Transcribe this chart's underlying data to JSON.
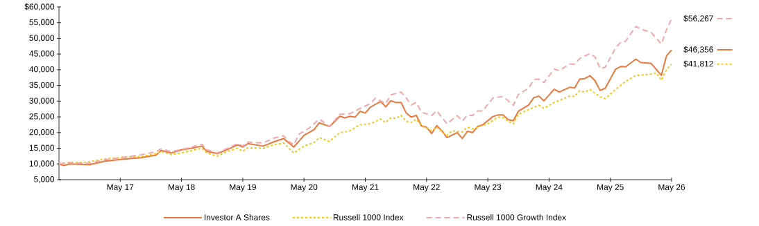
{
  "chart_data": {
    "type": "line",
    "xlim": [
      "2016-05",
      "2026-05"
    ],
    "xticks": [
      {
        "value": "2017-05",
        "label": "May 17"
      },
      {
        "value": "2018-05",
        "label": "May 18"
      },
      {
        "value": "2019-05",
        "label": "May 19"
      },
      {
        "value": "2020-05",
        "label": "May 20"
      },
      {
        "value": "2021-05",
        "label": "May 21"
      },
      {
        "value": "2022-05",
        "label": "May 22"
      },
      {
        "value": "2023-05",
        "label": "May 23"
      },
      {
        "value": "2024-05",
        "label": "May 24"
      },
      {
        "value": "2025-05",
        "label": "May 25"
      },
      {
        "value": "2026-05",
        "label": "May 26"
      }
    ],
    "ylim": [
      5000,
      60000
    ],
    "yticks": [
      {
        "value": 5000,
        "label": "5,000"
      },
      {
        "value": 10000,
        "label": "10,000"
      },
      {
        "value": 15000,
        "label": "15,000"
      },
      {
        "value": 20000,
        "label": "20,000"
      },
      {
        "value": 25000,
        "label": "25,000"
      },
      {
        "value": 30000,
        "label": "30,000"
      },
      {
        "value": 35000,
        "label": "35,000"
      },
      {
        "value": 40000,
        "label": "40,000"
      },
      {
        "value": 45000,
        "label": "45,000"
      },
      {
        "value": 50000,
        "label": "50,000"
      },
      {
        "value": 55000,
        "label": "55,000"
      },
      {
        "value": 60000,
        "label": "$60,000"
      }
    ],
    "legend": "bottom",
    "series": [
      {
        "name": "Investor A Shares",
        "color": "#e8783c",
        "line_style": "solid",
        "x": [
          "2016-05",
          "2016-06",
          "2016-07",
          "2016-11",
          "2017-02",
          "2017-06",
          "2017-09",
          "2017-12",
          "2018-01",
          "2018-03",
          "2018-05",
          "2018-07",
          "2018-09",
          "2018-10",
          "2018-12",
          "2019-02",
          "2019-04",
          "2019-05",
          "2019-06",
          "2019-09",
          "2019-11",
          "2020-01",
          "2020-03",
          "2020-05",
          "2020-07",
          "2020-08",
          "2020-10",
          "2020-12",
          "2021-01",
          "2021-02",
          "2021-03",
          "2021-04",
          "2021-05",
          "2021-06",
          "2021-08",
          "2021-09",
          "2021-10",
          "2021-11",
          "2021-12",
          "2022-01",
          "2022-02",
          "2022-03",
          "2022-04",
          "2022-05",
          "2022-06",
          "2022-07",
          "2022-08",
          "2022-09",
          "2022-11",
          "2022-12",
          "2023-01",
          "2023-02",
          "2023-03",
          "2023-04",
          "2023-06",
          "2023-07",
          "2023-08",
          "2023-09",
          "2023-10",
          "2023-11",
          "2024-01",
          "2024-02",
          "2024-03",
          "2024-04",
          "2024-06",
          "2024-07",
          "2024-09",
          "2024-10",
          "2024-11",
          "2024-12",
          "2025-01",
          "2025-02",
          "2025-03",
          "2025-04",
          "2025-06",
          "2025-07",
          "2025-08",
          "2025-10",
          "2025-11",
          "2026-01",
          "2026-03",
          "2026-04",
          "2026-05"
        ],
        "values": [
          10000,
          9500,
          10000,
          9800,
          10900,
          11600,
          12000,
          12800,
          14300,
          13500,
          14500,
          15000,
          15700,
          14000,
          13300,
          14600,
          16100,
          15400,
          16500,
          15700,
          17000,
          18100,
          15400,
          19100,
          21000,
          23100,
          21900,
          25200,
          24700,
          25200,
          24900,
          26800,
          26200,
          28100,
          29900,
          28200,
          30100,
          29600,
          29600,
          26300,
          24900,
          25500,
          22100,
          21700,
          19700,
          22200,
          20600,
          18400,
          20000,
          18100,
          20400,
          20000,
          21900,
          22500,
          25100,
          25600,
          25600,
          24100,
          23800,
          26800,
          28800,
          31100,
          31600,
          30100,
          33800,
          32900,
          34400,
          34200,
          37000,
          37200,
          38100,
          36500,
          33400,
          34100,
          40100,
          41000,
          40900,
          43400,
          42300,
          42000,
          38200,
          44400,
          46356
        ]
      },
      {
        "name": "Russell 1000 Index",
        "color": "#f5c518",
        "line_style": "dotted",
        "x": [
          "2016-05",
          "2016-07",
          "2016-09",
          "2016-10",
          "2017-02",
          "2017-06",
          "2017-09",
          "2017-12",
          "2018-01",
          "2018-03",
          "2018-05",
          "2018-07",
          "2018-09",
          "2018-10",
          "2018-12",
          "2019-02",
          "2019-04",
          "2019-05",
          "2019-06",
          "2019-09",
          "2019-11",
          "2020-01",
          "2020-03",
          "2020-05",
          "2020-07",
          "2020-08",
          "2020-10",
          "2020-12",
          "2021-01",
          "2021-02",
          "2021-04",
          "2021-06",
          "2021-08",
          "2021-09",
          "2021-10",
          "2021-11",
          "2021-12",
          "2022-01",
          "2022-02",
          "2022-03",
          "2022-04",
          "2022-05",
          "2022-06",
          "2022-07",
          "2022-09",
          "2022-10",
          "2022-12",
          "2023-01",
          "2023-02",
          "2023-05",
          "2023-07",
          "2023-08",
          "2023-09",
          "2023-10",
          "2023-11",
          "2024-01",
          "2024-03",
          "2024-04",
          "2024-06",
          "2024-09",
          "2024-10",
          "2024-11",
          "2024-12",
          "2025-01",
          "2025-02",
          "2025-03",
          "2025-04",
          "2025-06",
          "2025-08",
          "2025-10",
          "2026-01",
          "2026-02",
          "2026-03",
          "2026-04",
          "2026-05"
        ],
        "values": [
          10000,
          10500,
          10500,
          10500,
          11600,
          12200,
          12300,
          13300,
          14000,
          13000,
          13500,
          14300,
          15000,
          13500,
          12500,
          14000,
          15000,
          14000,
          15200,
          15000,
          16100,
          16700,
          13500,
          15700,
          16900,
          18400,
          17200,
          20000,
          20200,
          20600,
          22500,
          22800,
          24300,
          23200,
          24700,
          24500,
          25500,
          23600,
          23200,
          24300,
          22100,
          21400,
          20600,
          21700,
          19100,
          20600,
          20200,
          21700,
          21200,
          22800,
          24900,
          24800,
          23600,
          22800,
          25800,
          27300,
          28700,
          27700,
          29600,
          31600,
          31500,
          33300,
          32900,
          33700,
          32500,
          31400,
          30800,
          33700,
          36300,
          38200,
          38600,
          39000,
          36700,
          40000,
          41812
        ]
      },
      {
        "name": "Russell 1000 Growth Index",
        "color": "#f0a8aa",
        "line_style": "dashed",
        "x": [
          "2016-05",
          "2016-07",
          "2016-09",
          "2016-11",
          "2017-02",
          "2017-06",
          "2017-09",
          "2017-12",
          "2018-01",
          "2018-03",
          "2018-05",
          "2018-07",
          "2018-09",
          "2018-10",
          "2018-12",
          "2019-02",
          "2019-04",
          "2019-05",
          "2019-06",
          "2019-09",
          "2019-11",
          "2020-01",
          "2020-02",
          "2020-03",
          "2020-04",
          "2020-06",
          "2020-08",
          "2020-10",
          "2020-12",
          "2021-02",
          "2021-04",
          "2021-06",
          "2021-07",
          "2021-09",
          "2021-10",
          "2021-12",
          "2022-01",
          "2022-02",
          "2022-03",
          "2022-04",
          "2022-06",
          "2022-07",
          "2022-09",
          "2022-11",
          "2022-12",
          "2023-01",
          "2023-02",
          "2023-03",
          "2023-04",
          "2023-06",
          "2023-08",
          "2023-10",
          "2023-11",
          "2024-01",
          "2024-02",
          "2024-03",
          "2024-04",
          "2024-06",
          "2024-07",
          "2024-09",
          "2024-10",
          "2024-11",
          "2025-01",
          "2025-02",
          "2025-03",
          "2025-04",
          "2025-06",
          "2025-07",
          "2025-08",
          "2025-10",
          "2025-11",
          "2026-01",
          "2026-03",
          "2026-04",
          "2026-05"
        ],
        "values": [
          10000,
          10500,
          10300,
          10200,
          11300,
          12200,
          12900,
          13900,
          14800,
          13900,
          14600,
          15400,
          16300,
          14500,
          13500,
          15000,
          16500,
          15700,
          17000,
          16700,
          18200,
          19000,
          17200,
          16100,
          19500,
          21400,
          24300,
          21900,
          25800,
          26000,
          27700,
          29200,
          31000,
          29200,
          32000,
          32900,
          31100,
          28800,
          29600,
          26500,
          25400,
          26900,
          22800,
          25400,
          23700,
          25500,
          25400,
          26900,
          26900,
          31000,
          31500,
          28700,
          32200,
          34100,
          36900,
          37000,
          35900,
          40200,
          39700,
          41800,
          41800,
          43600,
          45100,
          44100,
          40400,
          40800,
          46900,
          48700,
          49100,
          53800,
          52900,
          51900,
          48200,
          52700,
          56267
        ]
      }
    ],
    "annotations": [
      {
        "text": "$56,267",
        "x": "2026-05",
        "y": 56267
      },
      {
        "text": "$46,356",
        "x": "2026-05",
        "y": 46356
      },
      {
        "text": "$41,812",
        "x": "2026-05",
        "y": 41812
      }
    ]
  }
}
